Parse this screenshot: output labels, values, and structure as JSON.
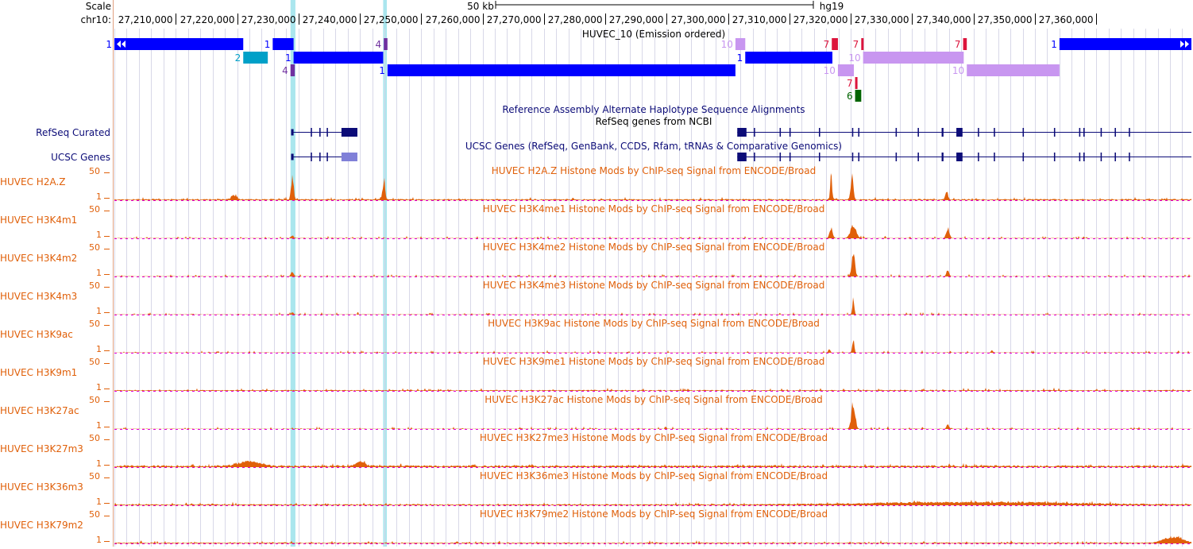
{
  "ruler": {
    "scale_label": "Scale",
    "chrom_label": "chr10:",
    "scale_value": "50 kb",
    "assembly": "hg19",
    "ticks": [
      {
        "label": "27,210,000",
        "value": 27210000
      },
      {
        "label": "27,220,000",
        "value": 27220000
      },
      {
        "label": "27,230,000",
        "value": 27230000
      },
      {
        "label": "27,240,000",
        "value": 27240000
      },
      {
        "label": "27,250,000",
        "value": 27250000
      },
      {
        "label": "27,260,000",
        "value": 27260000
      },
      {
        "label": "27,270,000",
        "value": 27270000
      },
      {
        "label": "27,280,000",
        "value": 27280000
      },
      {
        "label": "27,290,000",
        "value": 27290000
      },
      {
        "label": "27,300,000",
        "value": 27300000
      },
      {
        "label": "27,310,000",
        "value": 27310000
      },
      {
        "label": "27,320,000",
        "value": 27320000
      },
      {
        "label": "27,330,000",
        "value": 27330000
      },
      {
        "label": "27,340,000",
        "value": 27340000
      },
      {
        "label": "27,350,000",
        "value": 27350000
      },
      {
        "label": "27,360,000",
        "value": 27360000
      }
    ]
  },
  "view": {
    "start": 27200000,
    "end": 27375500
  },
  "highlights": [
    {
      "start": 27228700,
      "end": 27229500
    },
    {
      "start": 27243800,
      "end": 27244400
    }
  ],
  "chromhmm": {
    "title": "HUVEC_10 (Emission ordered)",
    "segments": [
      {
        "label": "1",
        "start": 27200000,
        "end": 27221000,
        "row": 0,
        "color": "#0000ff",
        "arrows": "left"
      },
      {
        "label": "1",
        "start": 27225800,
        "end": 27229200,
        "row": 0,
        "color": "#0000ff"
      },
      {
        "label": "4",
        "start": 27243900,
        "end": 27244500,
        "row": 0,
        "color": "#7030a0"
      },
      {
        "label": "10",
        "start": 27301200,
        "end": 27302800,
        "row": 0,
        "color": "#c896f0"
      },
      {
        "label": "7",
        "start": 27316900,
        "end": 27317900,
        "row": 0,
        "color": "#dc143c"
      },
      {
        "label": "7",
        "start": 27321700,
        "end": 27322000,
        "row": 0,
        "color": "#dc143c"
      },
      {
        "label": "7",
        "start": 27338300,
        "end": 27338900,
        "row": 0,
        "color": "#dc143c"
      },
      {
        "label": "1",
        "start": 27354000,
        "end": 27375500,
        "row": 0,
        "color": "#0000ff",
        "arrows": "right"
      },
      {
        "label": "2",
        "start": 27221000,
        "end": 27225000,
        "row": 1,
        "color": "#00a0c8"
      },
      {
        "label": "1",
        "start": 27229200,
        "end": 27243800,
        "row": 1,
        "color": "#0000ff"
      },
      {
        "label": "1",
        "start": 27302800,
        "end": 27317000,
        "row": 1,
        "color": "#0000ff"
      },
      {
        "label": "10",
        "start": 27322000,
        "end": 27338400,
        "row": 1,
        "color": "#c896f0"
      },
      {
        "label": "4",
        "start": 27228700,
        "end": 27229400,
        "row": 2,
        "color": "#7030a0"
      },
      {
        "label": "1",
        "start": 27244500,
        "end": 27301200,
        "row": 2,
        "color": "#0000ff"
      },
      {
        "label": "10",
        "start": 27317900,
        "end": 27320500,
        "row": 2,
        "color": "#c896f0"
      },
      {
        "label": "10",
        "start": 27338900,
        "end": 27354000,
        "row": 2,
        "color": "#c896f0"
      },
      {
        "label": "7",
        "start": 27320700,
        "end": 27320900,
        "row": 3,
        "color": "#dc143c"
      },
      {
        "label": "6",
        "start": 27320700,
        "end": 27321700,
        "row": 4,
        "color": "#006400"
      }
    ]
  },
  "alt_haplotype_title": "Reference Assembly Alternate Haplotype Sequence Alignments",
  "refseq": {
    "label": "RefSeq Curated",
    "title": "RefSeq genes from NCBI",
    "color": "#0c0c78",
    "genes": [
      {
        "start": 27228800,
        "end": 27239600,
        "cds_end": 27237000,
        "exons": [
          [
            27228800,
            27229200
          ],
          [
            27232000,
            27232200
          ],
          [
            27233400,
            27233600
          ],
          [
            27234600,
            27234800
          ],
          [
            27237000,
            27239600
          ]
        ]
      },
      {
        "start": 27301500,
        "end": 27375500,
        "cds_end": 27375500,
        "exons": [
          [
            27301500,
            27303000
          ],
          [
            27304200,
            27304400
          ],
          [
            27308400,
            27308600
          ],
          [
            27310000,
            27310200
          ],
          [
            27314800,
            27315000
          ],
          [
            27320200,
            27320400
          ],
          [
            27321200,
            27321400
          ],
          [
            27327300,
            27327500
          ],
          [
            27330900,
            27331100
          ],
          [
            27334800,
            27335100
          ],
          [
            27337200,
            27338200
          ],
          [
            27340700,
            27340900
          ],
          [
            27343300,
            27343500
          ],
          [
            27348000,
            27348200
          ],
          [
            27353100,
            27353300
          ],
          [
            27357200,
            27357400
          ],
          [
            27357900,
            27358100
          ],
          [
            27360700,
            27360900
          ],
          [
            27363000,
            27363200
          ],
          [
            27365300,
            27365500
          ]
        ]
      }
    ]
  },
  "ucsc": {
    "label": "UCSC Genes",
    "title": "UCSC Genes (RefSeq, GenBank, CCDS, Rfam, tRNAs & Comparative Genomics)",
    "color": "#0c0c78",
    "light": "#8080d8"
  },
  "signal_tracks": [
    {
      "label": "HUVEC H2A.Z",
      "title": "HUVEC H2A.Z Histone Mods by ChIP-seq Signal from ENCODE/Broad",
      "max": "50",
      "min": "1",
      "base": 1.0,
      "peaks": [
        {
          "pos": 27229000,
          "height": 30,
          "width": 400
        },
        {
          "pos": 27243900,
          "height": 25,
          "width": 400
        },
        {
          "pos": 27316800,
          "height": 30,
          "width": 300
        },
        {
          "pos": 27320200,
          "height": 32,
          "width": 400
        },
        {
          "pos": 27335600,
          "height": 11,
          "width": 400
        },
        {
          "pos": 27219500,
          "height": 6,
          "width": 800
        }
      ]
    },
    {
      "label": "HUVEC H3K4m1",
      "title": "HUVEC H3K4me1 Histone Mods by ChIP-seq Signal from ENCODE/Broad",
      "max": "50",
      "min": "1",
      "base": 0.3,
      "peaks": [
        {
          "pos": 27229000,
          "height": 4,
          "width": 400
        },
        {
          "pos": 27316800,
          "height": 13,
          "width": 500
        },
        {
          "pos": 27320400,
          "height": 15,
          "width": 900
        },
        {
          "pos": 27335800,
          "height": 13,
          "width": 500
        }
      ]
    },
    {
      "label": "HUVEC H3K4m2",
      "title": "HUVEC H3K4me2 Histone Mods by ChIP-seq Signal from ENCODE/Broad",
      "max": "50",
      "min": "1",
      "base": 0.3,
      "peaks": [
        {
          "pos": 27229000,
          "height": 6,
          "width": 400
        },
        {
          "pos": 27320400,
          "height": 30,
          "width": 500
        },
        {
          "pos": 27335800,
          "height": 8,
          "width": 400
        }
      ]
    },
    {
      "label": "HUVEC H3K4m3",
      "title": "HUVEC H3K4me3 Histone Mods by ChIP-seq Signal from ENCODE/Broad",
      "max": "50",
      "min": "1",
      "base": 0.3,
      "peaks": [
        {
          "pos": 27229000,
          "height": 3,
          "width": 300
        },
        {
          "pos": 27320400,
          "height": 18,
          "width": 300
        }
      ]
    },
    {
      "label": "HUVEC H3K9ac",
      "title": "HUVEC H3K9ac Histone Mods by ChIP-seq Signal from ENCODE/Broad",
      "max": "50",
      "min": "1",
      "base": 0.3,
      "peaks": [
        {
          "pos": 27316500,
          "height": 5,
          "width": 300
        },
        {
          "pos": 27320400,
          "height": 18,
          "width": 300
        },
        {
          "pos": 27343000,
          "height": 3,
          "width": 300
        }
      ]
    },
    {
      "label": "HUVEC H3K9m1",
      "title": "HUVEC H3K9me1 Histone Mods by ChIP-seq Signal from ENCODE/Broad",
      "max": "50",
      "min": "1",
      "base": 0.8,
      "peaks": []
    },
    {
      "label": "HUVEC H3K27ac",
      "title": "HUVEC H3K27ac Histone Mods by ChIP-seq Signal from ENCODE/Broad",
      "max": "50",
      "min": "1",
      "base": 0.3,
      "peaks": [
        {
          "pos": 27320400,
          "height": 32,
          "width": 600
        },
        {
          "pos": 27335800,
          "height": 6,
          "width": 400
        }
      ]
    },
    {
      "label": "HUVEC H3K27m3",
      "title": "HUVEC H3K27me3 Histone Mods by ChIP-seq Signal from ENCODE/Broad",
      "max": "50",
      "min": "1",
      "base": 1.5,
      "peaks": [
        {
          "pos": 27222000,
          "height": 6,
          "width": 3500
        },
        {
          "pos": 27240000,
          "height": 5,
          "width": 1500
        }
      ]
    },
    {
      "label": "HUVEC H3K36m3",
      "title": "HUVEC H3K36me3 Histone Mods by ChIP-seq Signal from ENCODE/Broad",
      "max": "50",
      "min": "1",
      "base": 1.0,
      "peaks": [
        {
          "pos": 27340000,
          "height": 3,
          "width": 30000
        }
      ]
    },
    {
      "label": "HUVEC H3K79m2",
      "title": "HUVEC H3K79me2 Histone Mods by ChIP-seq Signal from ENCODE/Broad",
      "max": "50",
      "min": "1",
      "base": 0.8,
      "peaks": [
        {
          "pos": 27372500,
          "height": 7,
          "width": 3000
        }
      ]
    }
  ],
  "colors": {
    "track_label": "#0c0c78",
    "signal_label": "#e0600a",
    "signal_fill": "#e0600a",
    "signal_dot": "#e000e0",
    "highlight": "#aae6ee",
    "grid": "#d8d8e8"
  }
}
